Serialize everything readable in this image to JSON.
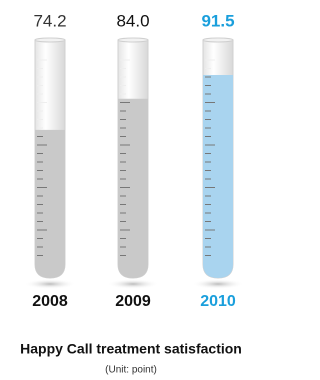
{
  "chart_data": {
    "type": "tube",
    "title": "Happy Call treatment satisfaction",
    "subtitle": "(Unit: point)",
    "categories": [
      "2008",
      "2009",
      "2010"
    ],
    "values": [
      74.2,
      84.0,
      91.5
    ],
    "value_labels": [
      "74.2",
      "84.0",
      "91.5"
    ],
    "colors": [
      "#c9c9c9",
      "#c9c9c9",
      "#a9d4ef"
    ],
    "label_colors": [
      "#333333",
      "#111111",
      "#1a9fdc"
    ],
    "bold": [
      false,
      false,
      true
    ],
    "ylim": [
      30,
      100
    ]
  }
}
